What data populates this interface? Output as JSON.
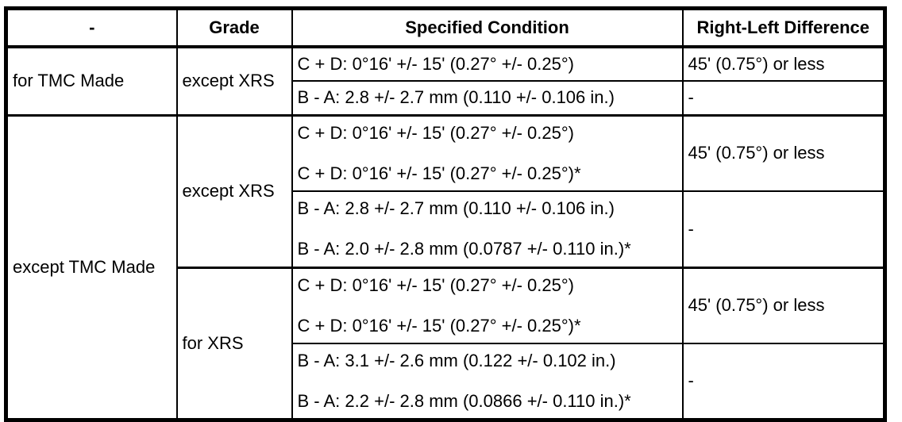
{
  "table": {
    "header": {
      "col0": "-",
      "col1": "Grade",
      "col2": "Specified Condition",
      "col3": "Right-Left Difference"
    },
    "groups": [
      {
        "made": "for TMC Made",
        "grades": [
          {
            "grade": "except XRS",
            "rows": [
              {
                "condition_lines": [
                  "C + D: 0°16' +/- 15' (0.27° +/- 0.25°)"
                ],
                "difference": "45' (0.75°) or less"
              },
              {
                "condition_lines": [
                  "B - A: 2.8 +/- 2.7 mm (0.110 +/- 0.106 in.)"
                ],
                "difference": "-"
              }
            ]
          }
        ]
      },
      {
        "made": "except TMC Made",
        "grades": [
          {
            "grade": "except XRS",
            "rows": [
              {
                "condition_lines": [
                  "C + D: 0°16' +/- 15' (0.27° +/- 0.25°)",
                  "C + D: 0°16' +/- 15' (0.27° +/- 0.25°)*"
                ],
                "difference": "45' (0.75°) or less"
              },
              {
                "condition_lines": [
                  "B - A: 2.8 +/- 2.7 mm (0.110 +/- 0.106 in.)",
                  "B - A: 2.0 +/- 2.8 mm (0.0787 +/- 0.110 in.)*"
                ],
                "difference": "-"
              }
            ]
          },
          {
            "grade": "for XRS",
            "rows": [
              {
                "condition_lines": [
                  "C + D: 0°16' +/- 15' (0.27° +/- 0.25°)",
                  "C + D: 0°16' +/- 15' (0.27° +/- 0.25°)*"
                ],
                "difference": "45' (0.75°) or less"
              },
              {
                "condition_lines": [
                  "B - A: 3.1 +/- 2.6 mm (0.122 +/- 0.102 in.)",
                  "B - A: 2.2 +/- 2.8 mm (0.0866 +/- 0.110 in.)*"
                ],
                "difference": "-"
              }
            ]
          }
        ]
      }
    ]
  }
}
